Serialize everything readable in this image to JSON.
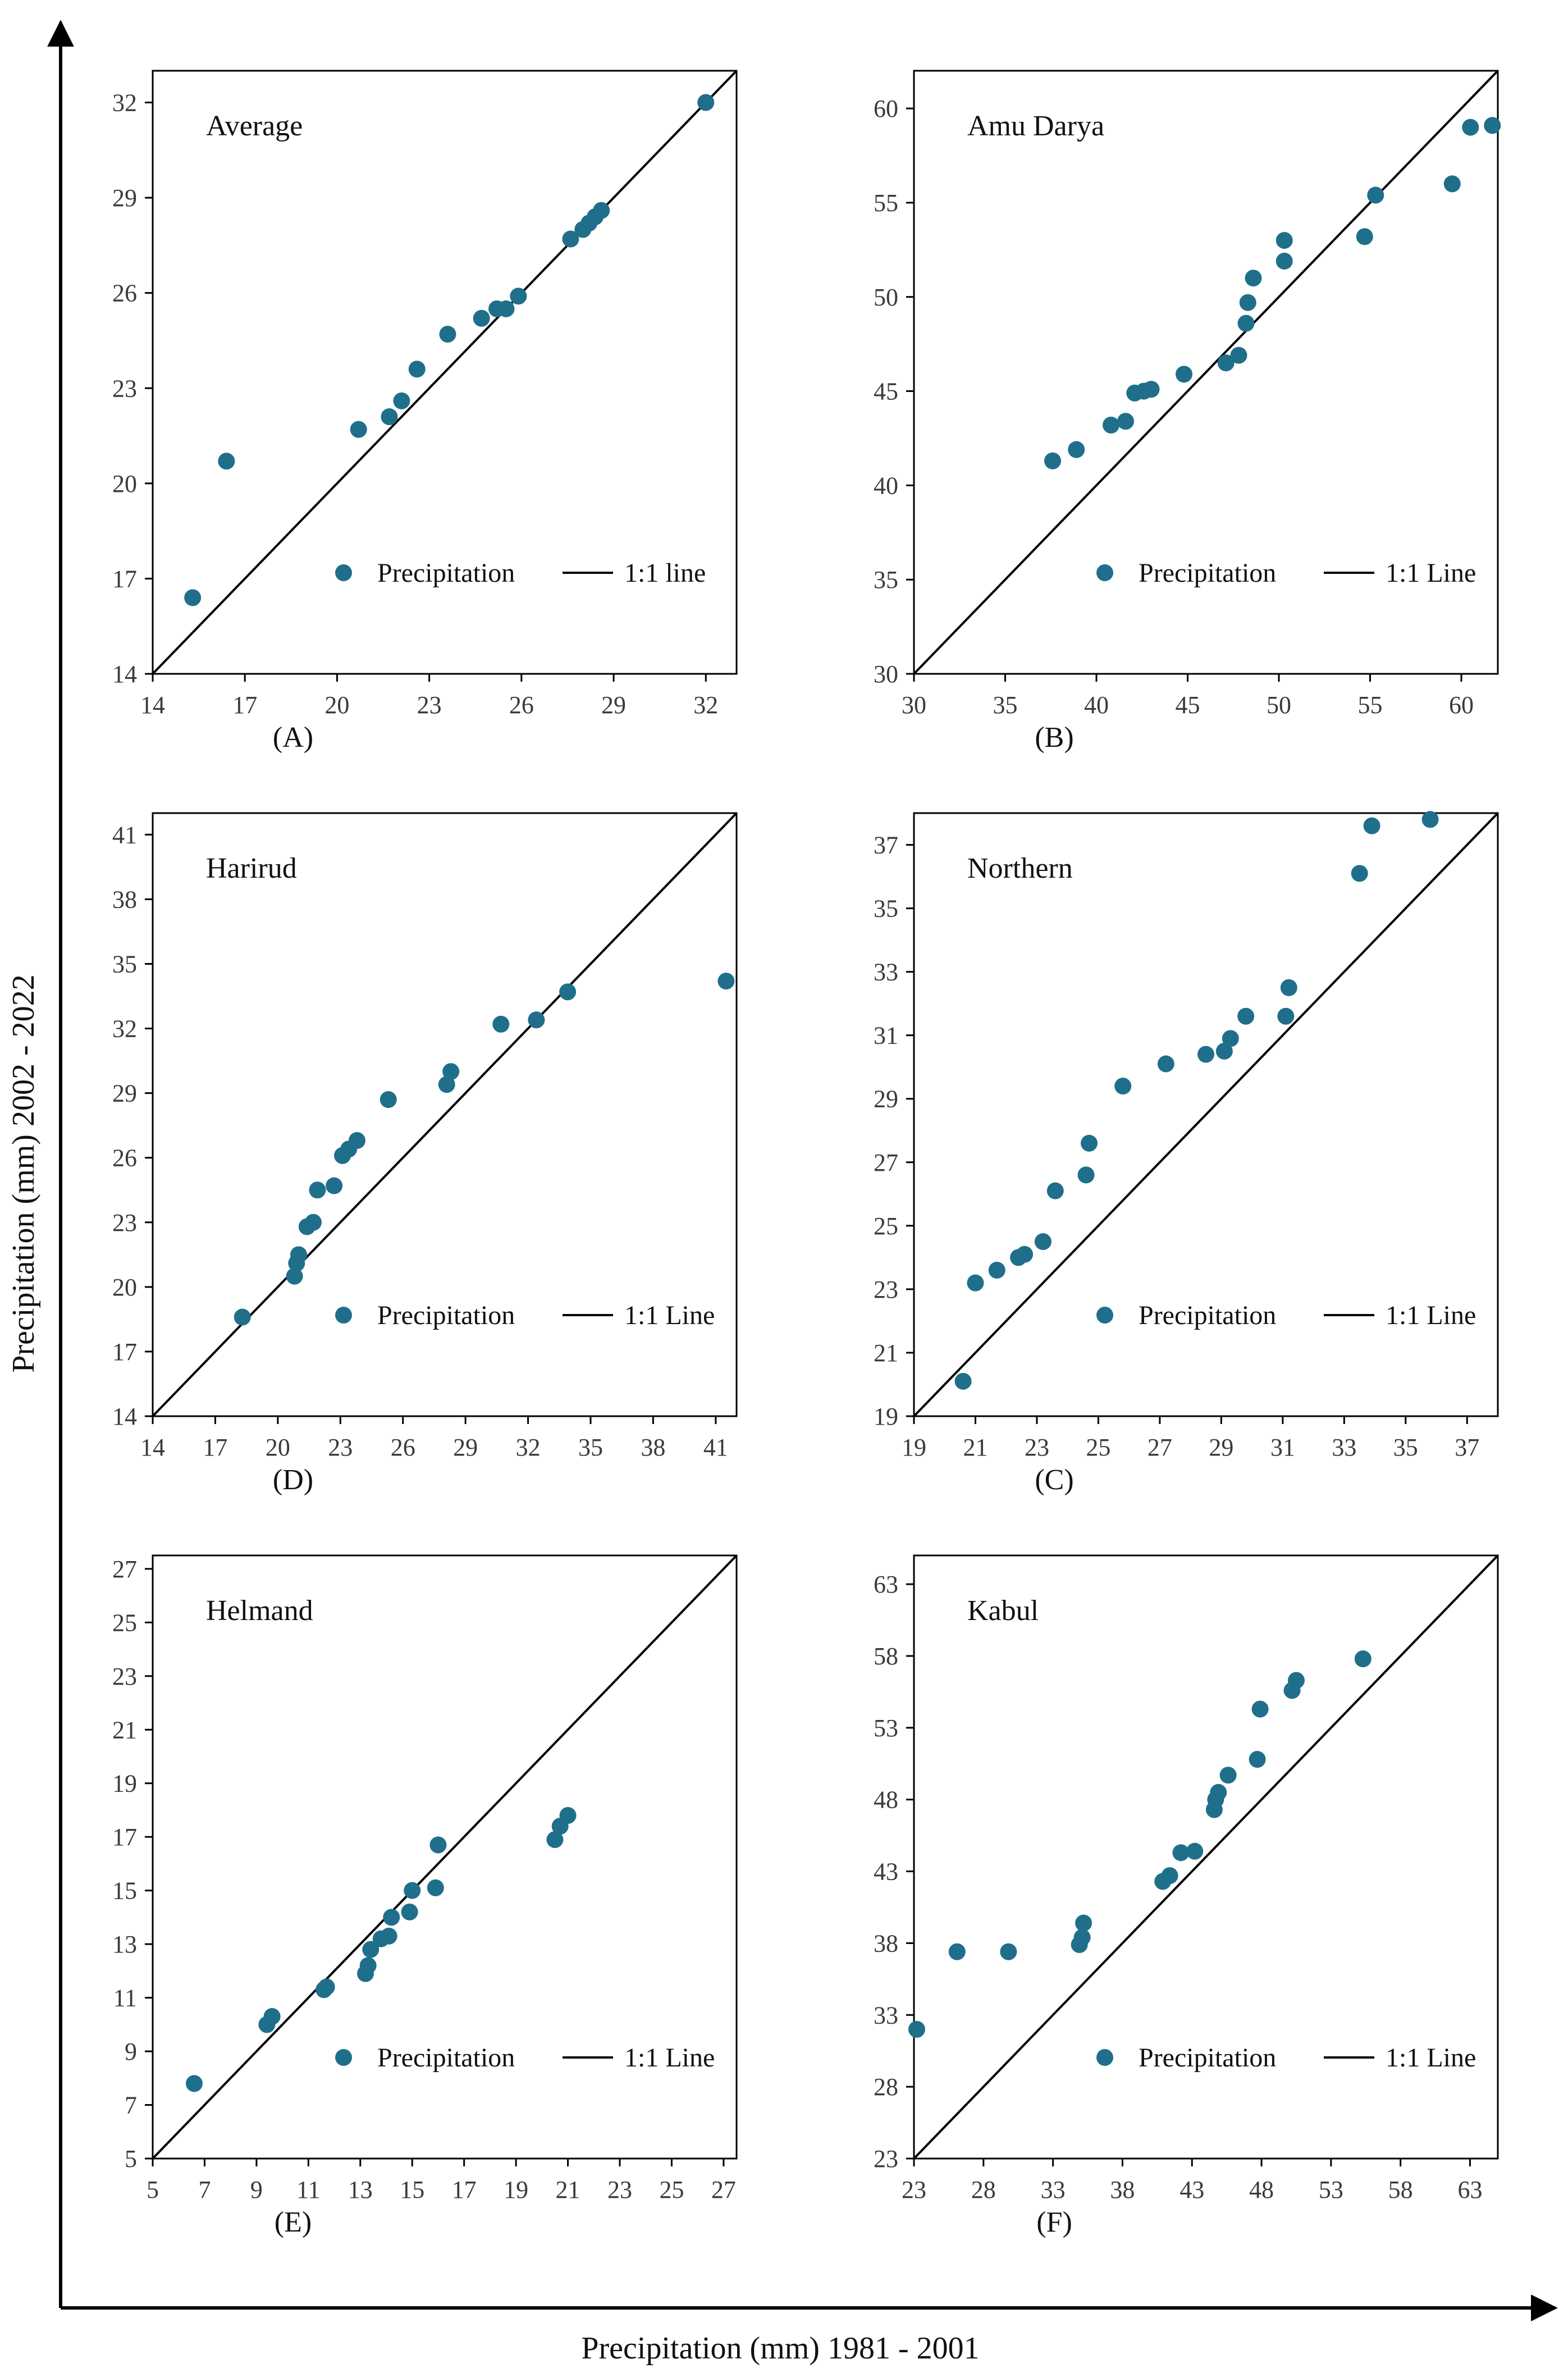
{
  "figure": {
    "x_axis_title": "Precipitation (mm)  1981 - 2001",
    "y_axis_title": "Precipitation (mm)  2002 - 2022",
    "colors": {
      "point": "#1f6f8b",
      "line": "#000000",
      "axis": "#000000"
    }
  },
  "chart_data": [
    {
      "type": "scatter",
      "title": "Average",
      "label": "(A)",
      "xlim": [
        14,
        33
      ],
      "ylim": [
        14,
        33
      ],
      "xticks": [
        14,
        17,
        20,
        23,
        26,
        29,
        32
      ],
      "yticks": [
        14,
        17,
        20,
        23,
        26,
        29,
        32
      ],
      "legend": {
        "series": "Precipitation",
        "line": "1:1 line"
      },
      "x": [
        15.3,
        16.4,
        20.7,
        21.7,
        22.1,
        22.6,
        23.6,
        24.7,
        25.2,
        25.5,
        25.9,
        27.6,
        28.0,
        28.2,
        28.4,
        28.6,
        32.0
      ],
      "y": [
        16.4,
        20.7,
        21.7,
        22.1,
        22.6,
        23.6,
        24.7,
        25.2,
        25.5,
        25.5,
        25.9,
        27.7,
        28.0,
        28.2,
        28.4,
        28.6,
        32.0
      ]
    },
    {
      "type": "scatter",
      "title": "Amu Darya",
      "label": "(B)",
      "xlim": [
        30,
        62
      ],
      "ylim": [
        30,
        62
      ],
      "xticks": [
        30,
        35,
        40,
        45,
        50,
        55,
        60
      ],
      "yticks": [
        30,
        35,
        40,
        45,
        50,
        55,
        60
      ],
      "legend": {
        "series": "Precipitation",
        "line": "1:1 Line"
      },
      "x": [
        37.6,
        38.9,
        40.8,
        41.6,
        42.1,
        42.6,
        43.0,
        44.8,
        47.1,
        47.8,
        48.2,
        48.3,
        48.6,
        50.3,
        50.3,
        54.7,
        55.3,
        59.5,
        60.5,
        61.7
      ],
      "y": [
        41.3,
        41.9,
        43.2,
        43.4,
        44.9,
        45.0,
        45.1,
        45.9,
        46.5,
        46.9,
        48.6,
        49.7,
        51.0,
        51.9,
        53.0,
        53.2,
        55.4,
        56.0,
        59.0,
        59.1
      ]
    },
    {
      "type": "scatter",
      "title": "Harirud",
      "label": "(D)",
      "xlim": [
        14,
        42
      ],
      "ylim": [
        14,
        42
      ],
      "xticks": [
        14,
        17,
        20,
        23,
        26,
        29,
        32,
        35,
        38,
        41
      ],
      "yticks": [
        14,
        17,
        20,
        23,
        26,
        29,
        32,
        35,
        38,
        41
      ],
      "legend": {
        "series": "Precipitation",
        "line": "1:1 Line"
      },
      "x": [
        18.3,
        20.8,
        20.9,
        21.0,
        21.4,
        21.7,
        21.9,
        22.7,
        23.1,
        23.4,
        23.8,
        25.3,
        28.1,
        28.3,
        30.7,
        32.4,
        33.9,
        41.5
      ],
      "y": [
        18.6,
        20.5,
        21.1,
        21.5,
        22.8,
        23.0,
        24.5,
        24.7,
        26.1,
        26.4,
        26.8,
        28.7,
        29.4,
        30.0,
        32.2,
        32.4,
        33.7,
        34.2
      ]
    },
    {
      "type": "scatter",
      "title": "Northern",
      "label": "(C)",
      "xlim": [
        19,
        38
      ],
      "ylim": [
        19,
        38
      ],
      "xticks": [
        19,
        21,
        23,
        25,
        27,
        29,
        31,
        33,
        35,
        37
      ],
      "yticks": [
        19,
        21,
        23,
        25,
        27,
        29,
        31,
        33,
        35,
        37
      ],
      "legend": {
        "series": "Precipitation",
        "line": "1:1 Line"
      },
      "x": [
        20.6,
        21.0,
        21.7,
        22.4,
        22.6,
        23.2,
        23.6,
        24.6,
        24.7,
        25.8,
        27.2,
        28.5,
        29.1,
        29.3,
        29.8,
        31.1,
        31.2,
        33.5,
        33.9,
        35.8
      ],
      "y": [
        20.1,
        23.2,
        23.6,
        24.0,
        24.1,
        24.5,
        26.1,
        26.6,
        27.6,
        29.4,
        30.1,
        30.4,
        30.5,
        30.9,
        31.6,
        31.6,
        32.5,
        36.1,
        37.6,
        37.8
      ]
    },
    {
      "type": "scatter",
      "title": "Helmand",
      "label": "(E)",
      "xlim": [
        5,
        27.5
      ],
      "ylim": [
        5,
        27.5
      ],
      "xticks": [
        5,
        7,
        9,
        11,
        13,
        15,
        17,
        19,
        21,
        23,
        25,
        27
      ],
      "yticks": [
        5,
        7,
        9,
        11,
        13,
        15,
        17,
        19,
        21,
        23,
        25,
        27
      ],
      "legend": {
        "series": "Precipitation",
        "line": "1:1 Line"
      },
      "x": [
        6.6,
        9.4,
        9.6,
        11.6,
        11.7,
        13.2,
        13.3,
        13.4,
        13.8,
        14.1,
        14.2,
        14.9,
        15.0,
        15.9,
        16.0,
        20.5,
        20.7,
        21.0
      ],
      "y": [
        7.8,
        10.0,
        10.3,
        11.3,
        11.4,
        11.9,
        12.2,
        12.8,
        13.2,
        13.3,
        14.0,
        14.2,
        15.0,
        15.1,
        16.7,
        16.9,
        17.4,
        17.8
      ]
    },
    {
      "type": "scatter",
      "title": "Kabul",
      "label": "(F)",
      "xlim": [
        23,
        65
      ],
      "ylim": [
        23,
        65
      ],
      "xticks": [
        23,
        28,
        33,
        38,
        43,
        48,
        53,
        58,
        63
      ],
      "yticks": [
        23,
        28,
        33,
        38,
        43,
        48,
        53,
        58,
        63
      ],
      "legend": {
        "series": "Precipitation",
        "line": "1:1 Line"
      },
      "x": [
        23.2,
        26.1,
        29.8,
        34.9,
        35.1,
        35.2,
        40.9,
        41.4,
        42.2,
        43.2,
        44.6,
        44.7,
        44.9,
        45.6,
        47.7,
        47.9,
        50.2,
        50.5,
        55.3
      ],
      "y": [
        32.0,
        37.4,
        37.4,
        37.9,
        38.4,
        39.4,
        42.3,
        42.7,
        44.3,
        44.4,
        47.3,
        48.0,
        48.5,
        49.7,
        50.8,
        54.3,
        55.6,
        56.3,
        57.8
      ]
    }
  ]
}
